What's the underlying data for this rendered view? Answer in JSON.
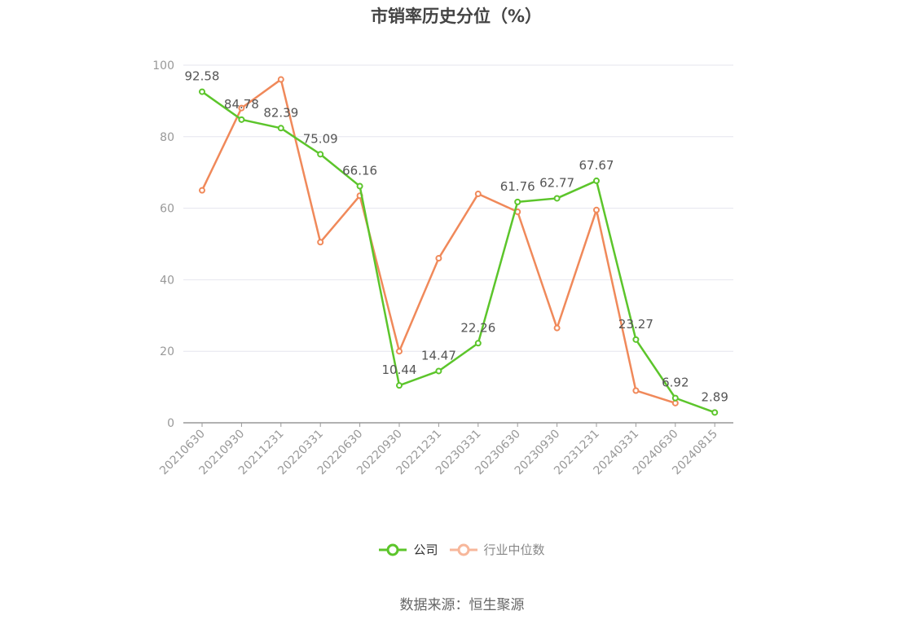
{
  "chart_data": {
    "type": "line",
    "title": "市销率历史分位（%）",
    "categories": [
      "20210630",
      "20210930",
      "20211231",
      "20220331",
      "20220630",
      "20220930",
      "20221231",
      "20230331",
      "20230630",
      "20230930",
      "20231231",
      "20240331",
      "20240630",
      "20240815"
    ],
    "ylim": [
      0,
      100
    ],
    "yticks": [
      0,
      20,
      40,
      60,
      80,
      100
    ],
    "grid": true,
    "legend_placement": "bottom-center",
    "series": [
      {
        "name": "公司",
        "color": "#5cc52b",
        "values": [
          92.58,
          84.78,
          82.39,
          75.09,
          66.16,
          10.44,
          14.47,
          22.26,
          61.76,
          62.77,
          67.67,
          23.27,
          6.92,
          2.89
        ],
        "labels": [
          "92.58",
          "84.78",
          "82.39",
          "75.09",
          "66.16",
          "10.44",
          "14.47",
          "22.26",
          "61.76",
          "62.77",
          "67.67",
          "23.27",
          "6.92",
          "2.89"
        ]
      },
      {
        "name": "行业中位数",
        "color": "#f0895a",
        "values": [
          65,
          88,
          96,
          50.5,
          63.5,
          20,
          46,
          64,
          59,
          26.5,
          59.5,
          9,
          5.5,
          null
        ]
      }
    ]
  },
  "source": "数据来源：恒生聚源"
}
